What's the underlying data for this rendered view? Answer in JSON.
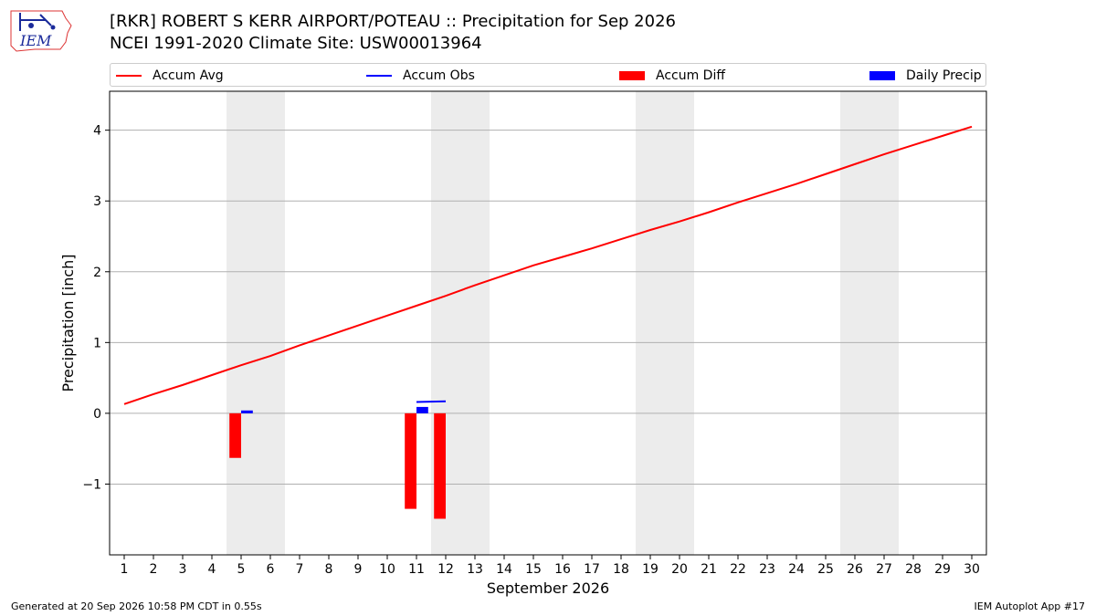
{
  "header": {
    "title_line1": "[RKR] ROBERT S KERR AIRPORT/POTEAU :: Precipitation for Sep 2026",
    "title_line2": "NCEI 1991-2020 Climate Site: USW00013964"
  },
  "logo": {
    "text": "IEM"
  },
  "footer": {
    "generated": "Generated at 20 Sep 2026 10:58 PM CDT in 0.55s",
    "app": "IEM Autoplot App #17"
  },
  "colors": {
    "accum_avg": "#ff0000",
    "accum_obs": "#0000ff",
    "accum_diff": "#ff0000",
    "daily_precip": "#0000ff",
    "weekend_band": "#ececec",
    "grid": "#b0b0b0"
  },
  "chart_data": {
    "type": "bar",
    "xlabel": "September 2026",
    "ylabel": "Precipitation [inch]",
    "x_ticks": [
      "1",
      "2",
      "3",
      "4",
      "5",
      "6",
      "7",
      "8",
      "9",
      "10",
      "11",
      "12",
      "13",
      "14",
      "15",
      "16",
      "17",
      "18",
      "19",
      "20",
      "21",
      "22",
      "23",
      "24",
      "25",
      "26",
      "27",
      "28",
      "29",
      "30"
    ],
    "y_ticks": [
      "−1",
      "0",
      "1",
      "2",
      "3",
      "4"
    ],
    "y_tick_values": [
      -1,
      0,
      1,
      2,
      3,
      4
    ],
    "ylim": [
      -2.0,
      4.55
    ],
    "xlim": [
      0.5,
      30.5
    ],
    "grid": "horizontal",
    "legend": {
      "placement": "top",
      "items": [
        {
          "label": "Accum Avg",
          "kind": "line",
          "color": "#ff0000"
        },
        {
          "label": "Accum Obs",
          "kind": "line",
          "color": "#0000ff"
        },
        {
          "label": "Accum Diff",
          "kind": "bar",
          "color": "#ff0000"
        },
        {
          "label": "Daily Precip",
          "kind": "bar",
          "color": "#0000ff"
        }
      ]
    },
    "weekend_days": [
      5,
      6,
      12,
      13,
      19,
      20,
      26,
      27
    ],
    "accum_avg": {
      "name": "Accum Avg",
      "x": [
        1,
        2,
        3,
        4,
        5,
        6,
        7,
        8,
        9,
        10,
        11,
        12,
        13,
        14,
        15,
        16,
        17,
        18,
        19,
        20,
        21,
        22,
        23,
        24,
        25,
        26,
        27,
        28,
        29,
        30
      ],
      "y": [
        0.13,
        0.27,
        0.4,
        0.54,
        0.68,
        0.81,
        0.96,
        1.1,
        1.24,
        1.38,
        1.52,
        1.66,
        1.81,
        1.95,
        2.09,
        2.21,
        2.33,
        2.46,
        2.59,
        2.71,
        2.84,
        2.98,
        3.11,
        3.24,
        3.38,
        3.52,
        3.66,
        3.79,
        3.92,
        4.05
      ]
    },
    "accum_obs": {
      "name": "Accum Obs",
      "x": [
        11,
        12
      ],
      "y": [
        0.16,
        0.17
      ]
    },
    "accum_diff": {
      "name": "Accum Diff",
      "x": [
        5,
        11,
        12
      ],
      "values": [
        -0.63,
        -1.35,
        -1.49
      ]
    },
    "daily_precip": {
      "name": "Daily Precip",
      "x": [
        5,
        11
      ],
      "values": [
        0.04,
        0.09
      ]
    }
  }
}
